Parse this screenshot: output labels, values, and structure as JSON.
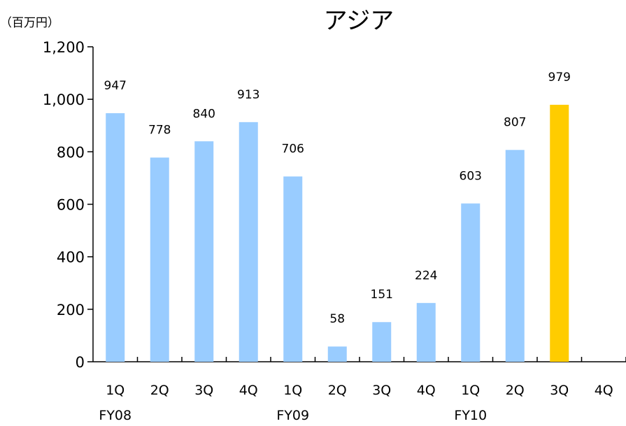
{
  "chart_data": {
    "type": "bar",
    "title": "アジア",
    "unit_label": "（百万円）",
    "xlabel": "",
    "ylabel": "",
    "categories": [
      "1Q",
      "2Q",
      "3Q",
      "4Q",
      "1Q",
      "2Q",
      "3Q",
      "4Q",
      "1Q",
      "2Q",
      "3Q",
      "4Q"
    ],
    "groups": [
      {
        "label": "FY08",
        "start": 0
      },
      {
        "label": "FY09",
        "start": 4
      },
      {
        "label": "FY10",
        "start": 8
      }
    ],
    "values": [
      947,
      778,
      840,
      913,
      706,
      58,
      151,
      224,
      603,
      807,
      979,
      null
    ],
    "data_labels": [
      "947",
      "778",
      "840",
      "913",
      "706",
      "58",
      "151",
      "224",
      "603",
      "807",
      "979",
      ""
    ],
    "yticks": [
      0,
      200,
      400,
      600,
      800,
      1000,
      1200
    ],
    "ytick_labels": [
      "0",
      "200",
      "400",
      "600",
      "800",
      "1,000",
      "1,200"
    ],
    "ylim": [
      0,
      1200
    ],
    "grid": false,
    "legend": "none",
    "colors": {
      "bar": "#99CCFF",
      "highlight": "#FFCC00",
      "axis": "#000000"
    },
    "highlight_index": 10
  }
}
